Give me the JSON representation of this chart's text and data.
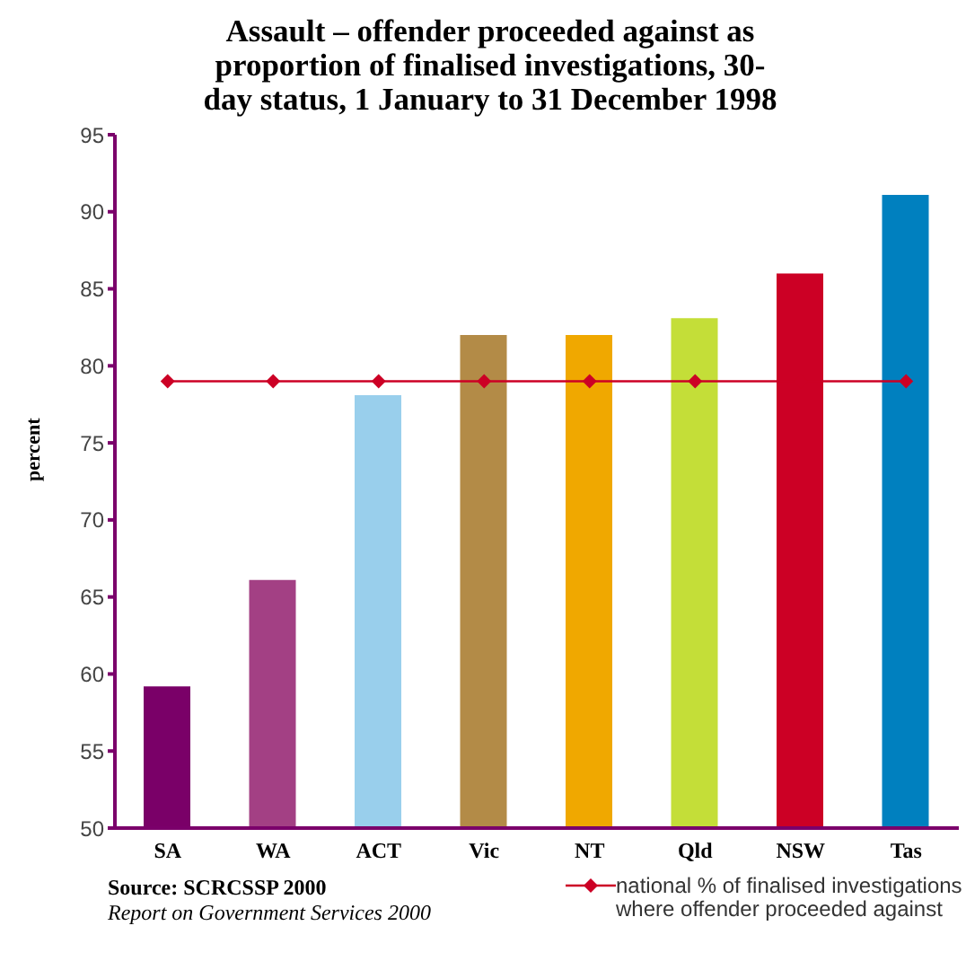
{
  "chart_data": {
    "type": "bar",
    "title": "Assault – offender proceeded against as proportion of finalised investigations, 30-day status, 1 January to 31 December 1998",
    "ylabel": "percent",
    "categories": [
      "SA",
      "WA",
      "ACT",
      "Vic",
      "NT",
      "Qld",
      "NSW",
      "Tas"
    ],
    "series": [
      {
        "colors": [
          "#7a0068",
          "#a34084",
          "#99cfec",
          "#b38b47",
          "#f0a800",
          "#c4de38",
          "#cc0025",
          "#0080bf"
        ],
        "values": [
          59.2,
          66.1,
          78.1,
          82,
          82,
          83.1,
          86,
          91.1
        ]
      },
      {
        "type": "line",
        "name": "national % of finalised investigations where offender proceeded against",
        "color": "#cc0025",
        "marker": "diamond",
        "values": [
          79,
          79,
          79,
          79,
          79,
          79,
          79,
          79
        ]
      }
    ],
    "ylim": [
      50,
      95
    ],
    "yticks": [
      50,
      55,
      60,
      65,
      70,
      75,
      80,
      85,
      90,
      95
    ],
    "grid": false,
    "legend": "bottom right",
    "annotations": [
      "Source: SCRCSSP 2000",
      "Report on Government Services 2000"
    ]
  }
}
